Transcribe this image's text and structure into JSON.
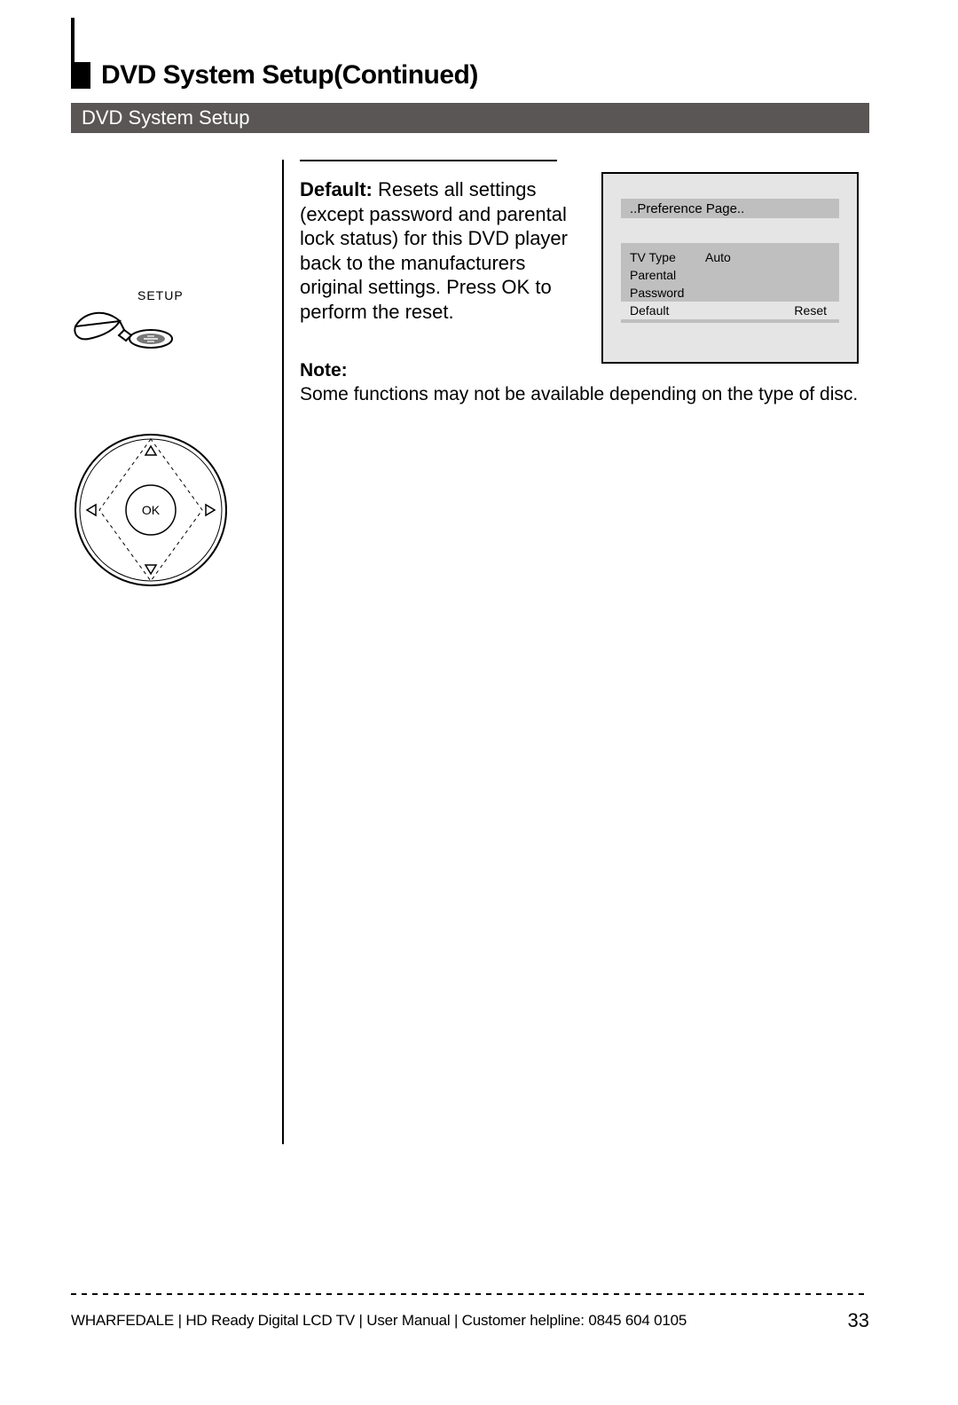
{
  "header": {
    "title": "DVD System Setup(Continued)",
    "subtitle": "DVD System Setup"
  },
  "left": {
    "setup_label": "SETUP",
    "ok_label": "OK"
  },
  "main": {
    "default_label": "Default:",
    "default_text": "Resets all settings (except password and parental lock status) for this DVD player back to the manufacturers original settings. Press OK to perform the reset.",
    "note_label": "Note:",
    "note_text": "Some functions may not be available depending on the type of disc."
  },
  "osd": {
    "header": "..Preference Page..",
    "rows": [
      {
        "c1": "TV Type",
        "c2": "Auto",
        "c3": "",
        "selected": false
      },
      {
        "c1": "Parental",
        "c2": "",
        "c3": "",
        "selected": false
      },
      {
        "c1": "Password",
        "c2": "",
        "c3": "",
        "selected": false
      },
      {
        "c1": "Default",
        "c2": "",
        "c3": "Reset",
        "selected": true
      }
    ],
    "panel_bg": "#e5e5e5",
    "row_bg": "#bfbfbf",
    "border_color": "#000000",
    "font_size": 14
  },
  "footer": {
    "text": "WHARFEDALE  |  HD Ready Digital LCD TV  |  User Manual  |  Customer helpline: 0845 604 0105",
    "page": "33"
  },
  "style": {
    "page_bg": "#ffffff",
    "text_color": "#000000",
    "subtitle_bg": "#5a5656",
    "subtitle_fg": "#ffffff",
    "title_fontsize": 30,
    "body_fontsize": 22
  }
}
